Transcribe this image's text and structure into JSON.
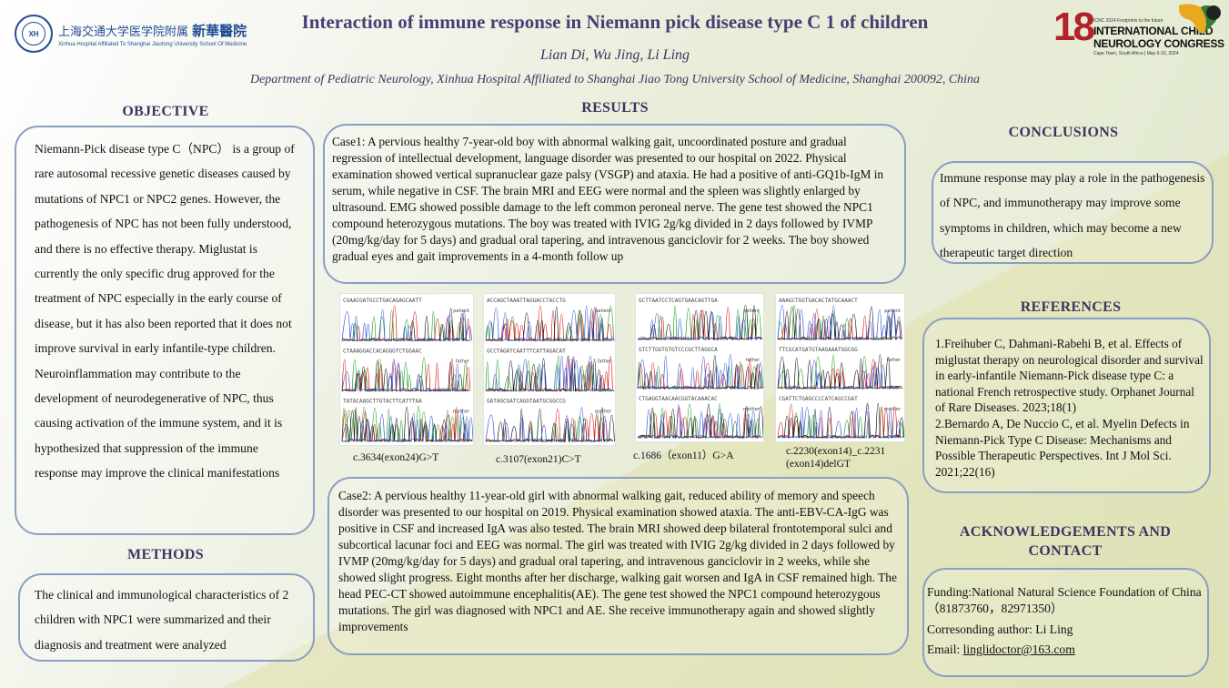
{
  "header": {
    "left_logo": {
      "seal_text": "XH",
      "cn_part1": "上海交通大学医学院附属",
      "cn_part2": "新華醫院",
      "en": "Xinhua Hospital Affiliated To Shanghai Jiaotong University School Of Medicine"
    },
    "title": "Interaction of immune response in Niemann pick disease type C 1 of children",
    "authors": "Lian Di,  Wu Jing,  Li Ling",
    "affiliation": "Department of Pediatric Neurology, Xinhua Hospital Affiliated to Shanghai Jiao Tong University School of Medicine, Shanghai 200092, China",
    "right_logo": {
      "number": "18",
      "top": "ICNC 2024  Footprints to the future",
      "line1": "INTERNATIONAL CHILD",
      "line2": "NEUROLOGY CONGRESS",
      "bottom": "Cape Town, South Africa | May 6-10, 2024"
    }
  },
  "objective": {
    "heading": "OBJECTIVE",
    "text": "Niemann-Pick disease type C（NPC） is a group of rare autosomal recessive genetic diseases caused by mutations of NPC1 or NPC2 genes. However, the pathogenesis of NPC has not been fully understood, and there is no effective therapy. Miglustat is currently the only specific drug approved for the treatment of NPC especially in the early course of disease, but it has also been reported that it does not improve survival in early infantile-type children. Neuroinflammation may contribute to the development of neurodegenerative of NPC, thus causing activation of the immune system, and it is hypothesized that suppression of the immune response may improve the clinical manifestations"
  },
  "methods": {
    "heading": "METHODS",
    "text": "The clinical and immunological characteristics of 2 children with NPC1 were summarized and their diagnosis and treatment were analyzed"
  },
  "results": {
    "heading": "RESULTS",
    "case1": "Case1: A pervious healthy 7-year-old boy with abnormal walking gait, uncoordinated posture and gradual regression of intellectual development, language disorder was presented to our hospital on 2022. Physical examination showed vertical supranuclear gaze palsy (VSGP) and ataxia. He had a positive of anti-GQ1b-IgM in serum, while negative in CSF. The brain MRI and EEG were normal and the spleen was slightly enlarged by ultrasound. EMG showed possible damage to the left common peroneal nerve. The gene test showed the NPC1 compound heterozygous mutations. The boy was treated with IVIG 2g/kg divided in 2 days followed by IVMP (20mg/kg/day for 5 days) and gradual oral tapering, and intravenous ganciclovir for 2 weeks. The boy showed gradual  eyes and  gait improvements in a 4-month follow up",
    "figures": [
      {
        "caption": "c.3634(exon24)G>T",
        "labels": [
          "patient",
          "father",
          "mother"
        ]
      },
      {
        "caption": "c.3107(exon21)C>T",
        "labels": [
          "patient",
          "father",
          "mother"
        ]
      },
      {
        "caption": "c.1686（exon11）G>A",
        "labels": [
          "patient",
          "father",
          "mother"
        ]
      },
      {
        "caption": "c.2230(exon14)_c.2231 (exon14)delGT",
        "labels": [
          "patient",
          "father",
          "mother"
        ]
      }
    ],
    "case2": "Case2: A pervious healthy 11-year-old girl with abnormal walking gait, reduced ability of memory and speech disorder was presented to our hospital on 2019. Physical examination showed ataxia. The anti-EBV-CA-IgG was positive  in CSF and increased IgA was also tested.  The brain MRI showed deep bilateral frontotemporal sulci and subcortical lacunar foci and EEG was normal. The girl was treated with IVIG 2g/kg divided in 2 days followed by IVMP (20mg/kg/day for 5 days) and gradual oral tapering, and intravenous ganciclovir in 2 weeks, while she showed slight progress. Eight months after her discharge, walking gait  worsen  and  IgA in CSF remained high. The head PEC-CT showed autoimmune encephalitis(AE). The gene test showed the NPC1 compound heterozygous mutations. The girl  was diagnosed with NPC1 and AE. She receive immunotherapy again and showed slightly improvements"
  },
  "conclusions": {
    "heading": "CONCLUSIONS",
    "text": "Immune response may play a role in the pathogenesis of NPC, and immunotherapy may improve some symptoms in children, which may become a new therapeutic target direction"
  },
  "references": {
    "heading": "REFERENCES",
    "items": [
      "1.Freihuber C, Dahmani-Rabehi B, et al. Effects of miglustat therapy on neurological disorder and survival in early-infantile Niemann-Pick disease type C: a national French retrospective study. Orphanet Journal of Rare Diseases. 2023;18(1)",
      "2.Bernardo A, De Nuccio C, et al. Myelin Defects in Niemann-Pick Type C Disease: Mechanisms and Possible Therapeutic Perspectives. Int J Mol Sci. 2021;22(16)"
    ]
  },
  "acknowledgements": {
    "heading_line1": "ACKNOWLEDGEMENTS AND",
    "heading_line2": "CONTACT",
    "funding": "Funding:National Natural Science Foundation of China（81873760，82971350）",
    "author": "Corresonding author: Li Ling",
    "email_label": "Email: ",
    "email": "linglidoctor@163.com"
  }
}
